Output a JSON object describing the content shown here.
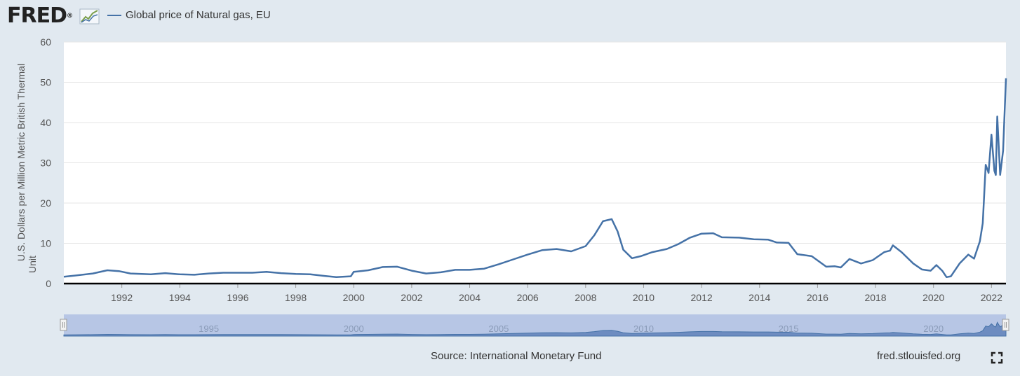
{
  "header": {
    "logo_text": "FRED",
    "logo_reg": "®",
    "logo_icon": "chart-line-icon",
    "legend_label": "Global price of Natural gas, EU"
  },
  "footer": {
    "source": "Source: International Monetary Fund",
    "site": "fred.stlouisfed.org",
    "fullscreen_icon": "fullscreen-icon"
  },
  "colors": {
    "series": "#4572a7",
    "background": "#e1e9f0",
    "plot": "#ffffff",
    "navigator": "#b7c6e5"
  },
  "chart_data": {
    "type": "line",
    "title": "Global price of Natural gas, EU",
    "xlabel": "",
    "ylabel": "U.S. Dollars per Million Metric British Thermal Unit",
    "xlim": [
      1990.0,
      2022.5
    ],
    "ylim": [
      0,
      60
    ],
    "yticks": [
      0,
      10,
      20,
      30,
      40,
      50,
      60
    ],
    "xticks": [
      1992,
      1994,
      1996,
      1998,
      2000,
      2002,
      2004,
      2006,
      2008,
      2010,
      2012,
      2014,
      2016,
      2018,
      2020,
      2022
    ],
    "grid": true,
    "legend": "top-left",
    "navigator_labels": [
      1995,
      2000,
      2005,
      2010,
      2015,
      2020
    ],
    "series": [
      {
        "name": "Global price of Natural gas, EU",
        "x": [
          1990.0,
          1990.4,
          1991.0,
          1991.5,
          1991.9,
          1992.3,
          1993.0,
          1993.5,
          1994.0,
          1994.5,
          1995.0,
          1995.5,
          1996.0,
          1996.5,
          1997.0,
          1997.5,
          1998.0,
          1998.5,
          1999.0,
          1999.4,
          1999.9,
          2000.0,
          2000.5,
          2001.0,
          2001.5,
          2002.0,
          2002.5,
          2003.0,
          2003.5,
          2004.0,
          2004.5,
          2005.0,
          2005.5,
          2006.0,
          2006.5,
          2007.0,
          2007.5,
          2008.0,
          2008.3,
          2008.6,
          2008.9,
          2009.1,
          2009.3,
          2009.6,
          2009.9,
          2010.3,
          2010.8,
          2011.2,
          2011.6,
          2012.0,
          2012.4,
          2012.7,
          2013.3,
          2013.8,
          2014.3,
          2014.6,
          2015.0,
          2015.3,
          2015.8,
          2016.3,
          2016.6,
          2016.8,
          2017.1,
          2017.5,
          2017.9,
          2018.3,
          2018.5,
          2018.6,
          2018.9,
          2019.3,
          2019.6,
          2019.9,
          2020.1,
          2020.3,
          2020.45,
          2020.6,
          2020.9,
          2021.2,
          2021.4,
          2021.6,
          2021.7,
          2021.8,
          2021.9,
          2022.0,
          2022.1,
          2022.15,
          2022.2,
          2022.3,
          2022.4,
          2022.5
        ],
        "y": [
          1.7,
          2.0,
          2.5,
          3.3,
          3.1,
          2.5,
          2.3,
          2.6,
          2.3,
          2.2,
          2.5,
          2.7,
          2.7,
          2.7,
          2.9,
          2.6,
          2.4,
          2.3,
          1.9,
          1.6,
          1.8,
          2.9,
          3.3,
          4.1,
          4.2,
          3.2,
          2.5,
          2.8,
          3.4,
          3.4,
          3.7,
          4.8,
          6.0,
          7.2,
          8.3,
          8.6,
          8.0,
          9.3,
          12.0,
          15.5,
          16.0,
          13.0,
          8.4,
          6.3,
          6.8,
          7.8,
          8.6,
          9.8,
          11.4,
          12.4,
          12.5,
          11.5,
          11.4,
          11.0,
          10.9,
          10.2,
          10.1,
          7.3,
          6.8,
          4.2,
          4.3,
          4.0,
          6.1,
          5.0,
          5.8,
          7.8,
          8.2,
          9.5,
          7.8,
          5.0,
          3.5,
          3.2,
          4.6,
          3.2,
          1.6,
          1.8,
          5.0,
          7.2,
          6.2,
          10.5,
          15.0,
          29.5,
          27.5,
          37.0,
          28.0,
          27.0,
          41.5,
          27.0,
          33.0,
          51.0
        ]
      }
    ]
  }
}
